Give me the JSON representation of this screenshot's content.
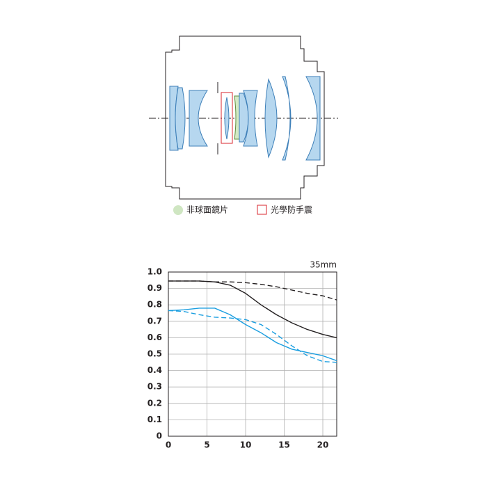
{
  "diagram": {
    "legend": [
      "非球面鏡片",
      "光學防手震"
    ]
  },
  "chart_data": {
    "type": "line",
    "label": "35mm",
    "x": [
      0,
      2,
      4,
      6,
      8,
      10,
      12,
      14,
      16,
      18,
      20,
      21.8
    ],
    "series": [
      {
        "color": "#231f20",
        "dash": false,
        "values": [
          0.945,
          0.945,
          0.945,
          0.94,
          0.92,
          0.87,
          0.8,
          0.74,
          0.69,
          0.65,
          0.62,
          0.6
        ]
      },
      {
        "color": "#231f20",
        "dash": true,
        "values": [
          0.945,
          0.945,
          0.945,
          0.94,
          0.94,
          0.935,
          0.925,
          0.91,
          0.89,
          0.87,
          0.855,
          0.83
        ]
      },
      {
        "color": "#1a9ee0",
        "dash": false,
        "values": [
          0.765,
          0.77,
          0.78,
          0.78,
          0.74,
          0.68,
          0.63,
          0.57,
          0.53,
          0.51,
          0.49,
          0.46
        ]
      },
      {
        "color": "#1a9ee0",
        "dash": true,
        "values": [
          0.765,
          0.76,
          0.74,
          0.725,
          0.72,
          0.71,
          0.68,
          0.62,
          0.55,
          0.49,
          0.455,
          0.45
        ]
      }
    ],
    "xlim": [
      0,
      21.8
    ],
    "ylim": [
      0,
      1
    ],
    "xticks": [
      0,
      5,
      10,
      15,
      20
    ],
    "yticks": [
      0,
      0.1,
      0.2,
      0.3,
      0.4,
      0.5,
      0.6,
      0.7,
      0.8,
      0.9,
      {
        "value": 1,
        "label": "1.0"
      }
    ],
    "grid": true
  }
}
